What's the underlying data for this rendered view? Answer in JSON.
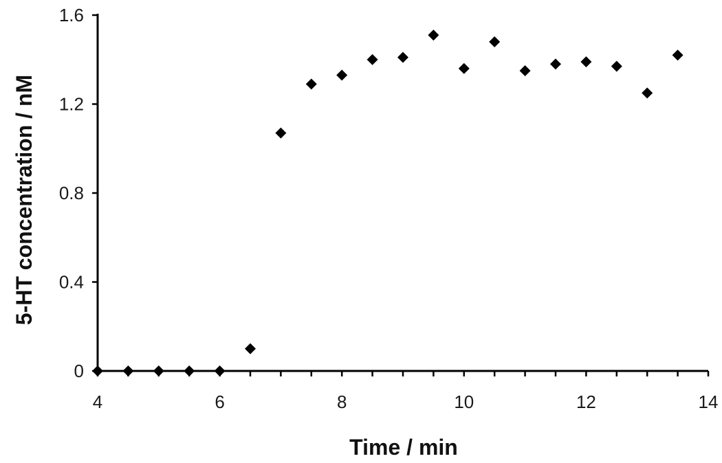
{
  "chart_data": {
    "type": "scatter",
    "title": "",
    "xlabel": "Time / min",
    "ylabel": "5-HT concentration / nM",
    "xlim": [
      4,
      14
    ],
    "ylim": [
      0,
      1.6
    ],
    "x_ticks": [
      "4",
      "6",
      "8",
      "10",
      "12",
      "14"
    ],
    "y_ticks": [
      "0",
      "0.4",
      "0.8",
      "1.2",
      "1.6"
    ],
    "grid": false,
    "marker": "diamond",
    "marker_color": "#000000",
    "series": [
      {
        "x": [
          4,
          4.5,
          5,
          5.5,
          6,
          6.5,
          7,
          7.5,
          8,
          8.5,
          9,
          9.5,
          10,
          10.5,
          11,
          11.5,
          12,
          12.5,
          13,
          13.5
        ],
        "y": [
          0,
          0,
          0,
          0,
          0,
          0.1,
          1.07,
          1.29,
          1.33,
          1.4,
          1.41,
          1.51,
          1.36,
          1.48,
          1.35,
          1.38,
          1.39,
          1.37,
          1.25,
          1.42
        ]
      }
    ]
  }
}
